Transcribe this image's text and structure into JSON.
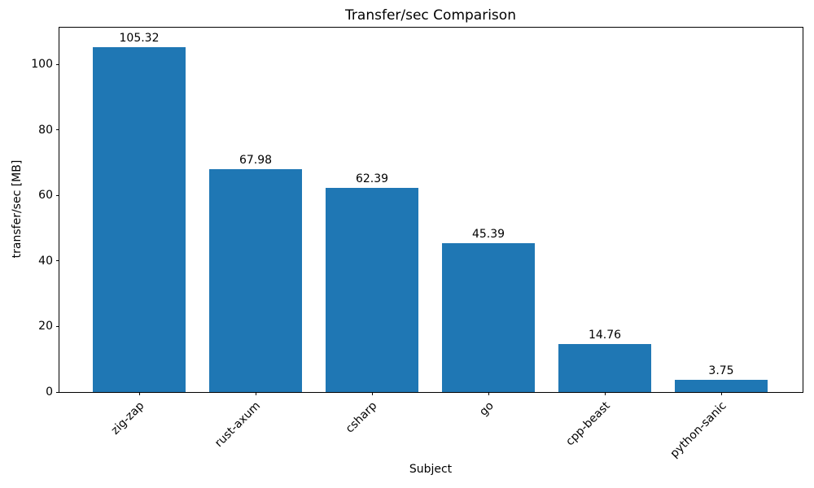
{
  "chart_data": {
    "type": "bar",
    "title": "Transfer/sec Comparison",
    "xlabel": "Subject",
    "ylabel": "transfer/sec [MB]",
    "categories": [
      "zig-zap",
      "rust-axum",
      "csharp",
      "go",
      "cpp-beast",
      "python-sanic"
    ],
    "values": [
      105.32,
      67.98,
      62.39,
      45.39,
      14.76,
      3.75
    ],
    "value_labels": [
      "105.32",
      "67.98",
      "62.39",
      "45.39",
      "14.76",
      "3.75"
    ],
    "yticks": [
      0,
      20,
      40,
      60,
      80,
      100
    ],
    "ylim": [
      0,
      111.3
    ],
    "grid": false,
    "legend": "none",
    "x_tick_rotation_deg": 45,
    "bar_color": "#1f77b4",
    "axis_color": "#000000",
    "text_color": "#000000",
    "background_color": "#ffffff"
  }
}
